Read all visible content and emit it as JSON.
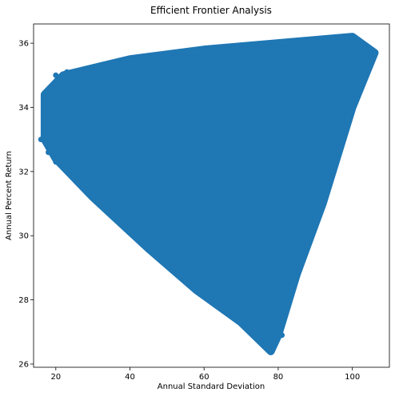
{
  "chart_data": {
    "type": "scatter",
    "title": "Efficient Frontier Analysis",
    "xlabel": "Annual Standard Deviation",
    "ylabel": "Annual Percent Return",
    "xlim": [
      14,
      110
    ],
    "ylim": [
      25.9,
      36.6
    ],
    "xticks": [
      "20",
      "40",
      "60",
      "80",
      "100"
    ],
    "yticks": [
      "26",
      "28",
      "30",
      "32",
      "34",
      "36"
    ],
    "grid": false,
    "legend": "none",
    "color": "#1f77b4",
    "region_boundary": [
      {
        "x": 17,
        "y": 33.0
      },
      {
        "x": 17,
        "y": 34.4
      },
      {
        "x": 22,
        "y": 35.0
      },
      {
        "x": 40,
        "y": 35.5
      },
      {
        "x": 60,
        "y": 35.8
      },
      {
        "x": 80,
        "y": 36.0
      },
      {
        "x": 100,
        "y": 36.2
      },
      {
        "x": 106,
        "y": 35.7
      },
      {
        "x": 100,
        "y": 34.0
      },
      {
        "x": 92,
        "y": 31.0
      },
      {
        "x": 85,
        "y": 28.8
      },
      {
        "x": 80,
        "y": 26.9
      },
      {
        "x": 78,
        "y": 26.4
      },
      {
        "x": 70,
        "y": 27.3
      },
      {
        "x": 58,
        "y": 28.3
      },
      {
        "x": 45,
        "y": 29.6
      },
      {
        "x": 30,
        "y": 31.2
      },
      {
        "x": 20,
        "y": 32.4
      }
    ],
    "points": [
      {
        "x": 16,
        "y": 33.0
      },
      {
        "x": 17,
        "y": 33.9
      },
      {
        "x": 18,
        "y": 34.5
      },
      {
        "x": 20,
        "y": 35.0
      },
      {
        "x": 23,
        "y": 35.1
      },
      {
        "x": 28,
        "y": 35.2
      },
      {
        "x": 33,
        "y": 35.3
      },
      {
        "x": 38,
        "y": 35.4
      },
      {
        "x": 45,
        "y": 35.5
      },
      {
        "x": 52,
        "y": 35.6
      },
      {
        "x": 60,
        "y": 35.7
      },
      {
        "x": 66,
        "y": 35.8
      },
      {
        "x": 72,
        "y": 35.85
      },
      {
        "x": 78,
        "y": 35.9
      },
      {
        "x": 84,
        "y": 36.0
      },
      {
        "x": 90,
        "y": 36.0
      },
      {
        "x": 96,
        "y": 36.1
      },
      {
        "x": 100,
        "y": 36.15
      },
      {
        "x": 102,
        "y": 35.9
      },
      {
        "x": 106,
        "y": 35.7
      },
      {
        "x": 101,
        "y": 35.4
      },
      {
        "x": 100,
        "y": 34.8
      },
      {
        "x": 98,
        "y": 34.2
      },
      {
        "x": 96,
        "y": 33.5
      },
      {
        "x": 94,
        "y": 32.8
      },
      {
        "x": 92,
        "y": 32.0
      },
      {
        "x": 90,
        "y": 31.2
      },
      {
        "x": 88,
        "y": 30.3
      },
      {
        "x": 86,
        "y": 29.5
      },
      {
        "x": 84,
        "y": 28.9
      },
      {
        "x": 82,
        "y": 28.0
      },
      {
        "x": 80,
        "y": 27.3
      },
      {
        "x": 81,
        "y": 26.9
      },
      {
        "x": 78,
        "y": 26.4
      },
      {
        "x": 76,
        "y": 26.8
      },
      {
        "x": 72,
        "y": 27.2
      },
      {
        "x": 68,
        "y": 27.6
      },
      {
        "x": 64,
        "y": 27.9
      },
      {
        "x": 60,
        "y": 28.2
      },
      {
        "x": 56,
        "y": 28.5
      },
      {
        "x": 52,
        "y": 29.0
      },
      {
        "x": 48,
        "y": 29.4
      },
      {
        "x": 44,
        "y": 29.8
      },
      {
        "x": 40,
        "y": 30.3
      },
      {
        "x": 36,
        "y": 30.8
      },
      {
        "x": 32,
        "y": 31.2
      },
      {
        "x": 28,
        "y": 31.6
      },
      {
        "x": 24,
        "y": 32.0
      },
      {
        "x": 20,
        "y": 32.3
      },
      {
        "x": 18,
        "y": 32.6
      }
    ]
  }
}
